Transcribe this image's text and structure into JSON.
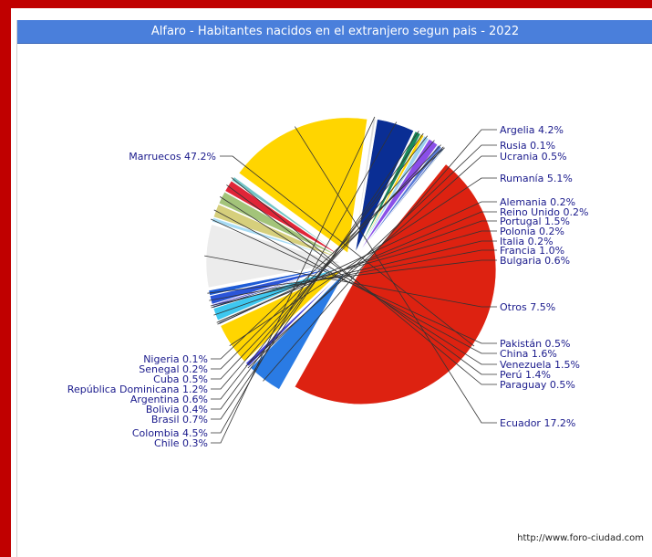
{
  "title": "Alfaro - Habitantes nacidos en el extranjero segun pais - 2022",
  "credit": "http://www.foro-ciudad.com",
  "chart_data": {
    "type": "pie",
    "title": "Alfaro - Habitantes nacidos en el extranjero segun pais - 2022",
    "unit": "%",
    "slices": [
      {
        "label": "Marruecos",
        "value": 47.2,
        "color": "#dd2211"
      },
      {
        "label": "Argelia",
        "value": 4.2,
        "color": "#2a7be4"
      },
      {
        "label": "Rusia",
        "value": 0.1,
        "color": "#1a3a9a"
      },
      {
        "label": "Ucrania",
        "value": 0.5,
        "color": "#3f3fe0"
      },
      {
        "label": "Rumanía",
        "value": 5.1,
        "color": "#ffd500"
      },
      {
        "label": "Alemania",
        "value": 0.2,
        "color": "#102060"
      },
      {
        "label": "Reino Unido",
        "value": 0.2,
        "color": "#8a8a8a"
      },
      {
        "label": "Portugal",
        "value": 1.5,
        "color": "#3ec8f0"
      },
      {
        "label": "Polonia",
        "value": 0.2,
        "color": "#0b3aa0"
      },
      {
        "label": "Italia",
        "value": 0.2,
        "color": "#5a4fd8"
      },
      {
        "label": "Francia",
        "value": 1.0,
        "color": "#2b55d8"
      },
      {
        "label": "Bulgaria",
        "value": 0.6,
        "color": "#1e5cd6"
      },
      {
        "label": "Otros",
        "value": 7.5,
        "color": "#ececec"
      },
      {
        "label": "Pakistán",
        "value": 0.5,
        "color": "#a8dcf5"
      },
      {
        "label": "China",
        "value": 1.6,
        "color": "#d6cf7c"
      },
      {
        "label": "Venezuela",
        "value": 1.5,
        "color": "#a3c47a"
      },
      {
        "label": "Perú",
        "value": 1.4,
        "color": "#e02538"
      },
      {
        "label": "Paraguay",
        "value": 0.5,
        "color": "#72c4c6"
      },
      {
        "label": "Ecuador",
        "value": 17.2,
        "color": "#ffd500"
      },
      {
        "label": "Chile",
        "value": 0.3,
        "color": "#dddddd"
      },
      {
        "label": "Colombia",
        "value": 4.5,
        "color": "#0a2e94"
      },
      {
        "label": "Brasil",
        "value": 0.7,
        "color": "#1a8a5a"
      },
      {
        "label": "Bolivia",
        "value": 0.4,
        "color": "#ffd500"
      },
      {
        "label": "Argentina",
        "value": 0.6,
        "color": "#9bd1f0"
      },
      {
        "label": "República Dominicana",
        "value": 1.2,
        "color": "#8a4fe8"
      },
      {
        "label": "Cuba",
        "value": 0.5,
        "color": "#5a7bd8"
      },
      {
        "label": "Senegal",
        "value": 0.2,
        "color": "#2a4fb0"
      },
      {
        "label": "Nigeria",
        "value": 0.1,
        "color": "#2a6a9a"
      }
    ],
    "legend": "none",
    "labels": "outside, with leader lines"
  }
}
